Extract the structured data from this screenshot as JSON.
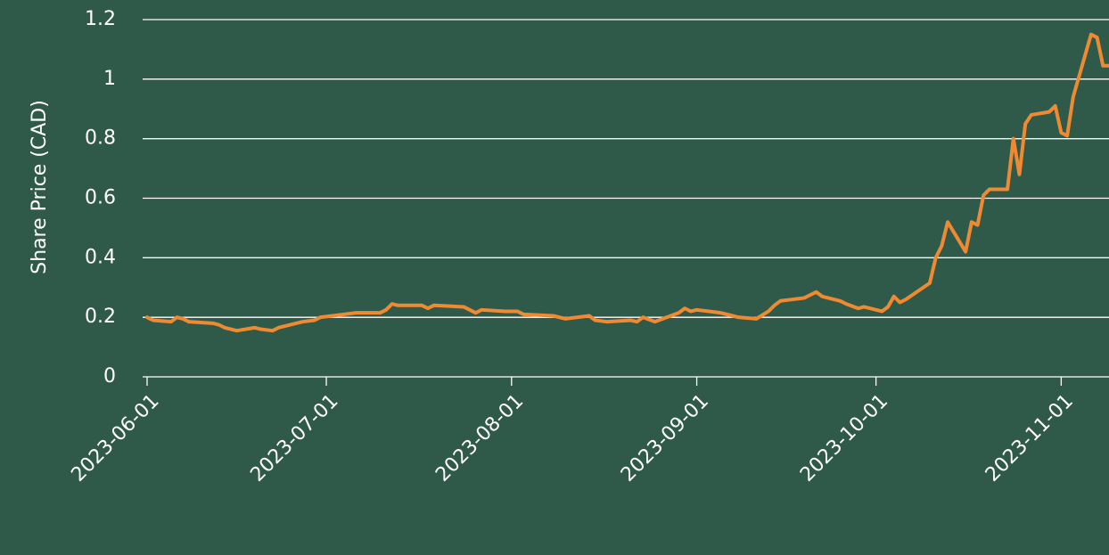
{
  "chart_data": {
    "type": "line",
    "y_label": "Share Price (CAD)",
    "xlim": [
      "2023-06-01",
      "2023-11-09"
    ],
    "xticks": [
      "2023-06-01",
      "2023-07-01",
      "2023-08-01",
      "2023-09-01",
      "2023-10-01",
      "2023-11-01"
    ],
    "ylim": [
      0,
      1.2
    ],
    "yticks": [
      0,
      0.2,
      0.4,
      0.6,
      0.8,
      1,
      1.2
    ],
    "grid": true,
    "series": [
      {
        "color": "#f08a32",
        "x": [
          "2023-06-01",
          "2023-06-02",
          "2023-06-05",
          "2023-06-06",
          "2023-06-07",
          "2023-06-08",
          "2023-06-12",
          "2023-06-13",
          "2023-06-14",
          "2023-06-16",
          "2023-06-19",
          "2023-06-20",
          "2023-06-22",
          "2023-06-23",
          "2023-06-27",
          "2023-06-29",
          "2023-06-30",
          "2023-07-04",
          "2023-07-06",
          "2023-07-10",
          "2023-07-11",
          "2023-07-12",
          "2023-07-13",
          "2023-07-17",
          "2023-07-18",
          "2023-07-19",
          "2023-07-24",
          "2023-07-26",
          "2023-07-27",
          "2023-07-31",
          "2023-08-02",
          "2023-08-03",
          "2023-08-08",
          "2023-08-10",
          "2023-08-14",
          "2023-08-15",
          "2023-08-17",
          "2023-08-21",
          "2023-08-22",
          "2023-08-23",
          "2023-08-25",
          "2023-08-29",
          "2023-08-30",
          "2023-08-31",
          "2023-09-01",
          "2023-09-05",
          "2023-09-07",
          "2023-09-08",
          "2023-09-11",
          "2023-09-13",
          "2023-09-14",
          "2023-09-15",
          "2023-09-19",
          "2023-09-21",
          "2023-09-22",
          "2023-09-25",
          "2023-09-26",
          "2023-09-28",
          "2023-09-29",
          "2023-10-02",
          "2023-10-03",
          "2023-10-04",
          "2023-10-05",
          "2023-10-06",
          "2023-10-10",
          "2023-10-11",
          "2023-10-12",
          "2023-10-13",
          "2023-10-16",
          "2023-10-17",
          "2023-10-18",
          "2023-10-19",
          "2023-10-20",
          "2023-10-23",
          "2023-10-24",
          "2023-10-25",
          "2023-10-26",
          "2023-10-27",
          "2023-10-30",
          "2023-10-31",
          "2023-11-01",
          "2023-11-02",
          "2023-11-03",
          "2023-11-06",
          "2023-11-07",
          "2023-11-08",
          "2023-11-09"
        ],
        "values": [
          0.2,
          0.19,
          0.185,
          0.2,
          0.195,
          0.185,
          0.18,
          0.175,
          0.165,
          0.155,
          0.165,
          0.16,
          0.155,
          0.165,
          0.185,
          0.19,
          0.2,
          0.21,
          0.215,
          0.215,
          0.225,
          0.245,
          0.24,
          0.24,
          0.23,
          0.24,
          0.235,
          0.215,
          0.225,
          0.22,
          0.22,
          0.21,
          0.205,
          0.195,
          0.205,
          0.19,
          0.185,
          0.19,
          0.185,
          0.2,
          0.185,
          0.215,
          0.23,
          0.22,
          0.225,
          0.215,
          0.205,
          0.2,
          0.195,
          0.22,
          0.24,
          0.255,
          0.265,
          0.285,
          0.27,
          0.255,
          0.245,
          0.23,
          0.235,
          0.22,
          0.235,
          0.27,
          0.25,
          0.26,
          0.315,
          0.4,
          0.44,
          0.52,
          0.42,
          0.52,
          0.51,
          0.61,
          0.63,
          0.63,
          0.8,
          0.68,
          0.85,
          0.88,
          0.89,
          0.91,
          0.82,
          0.81,
          0.94,
          1.15,
          1.14,
          1.045,
          1.045
        ]
      }
    ]
  }
}
